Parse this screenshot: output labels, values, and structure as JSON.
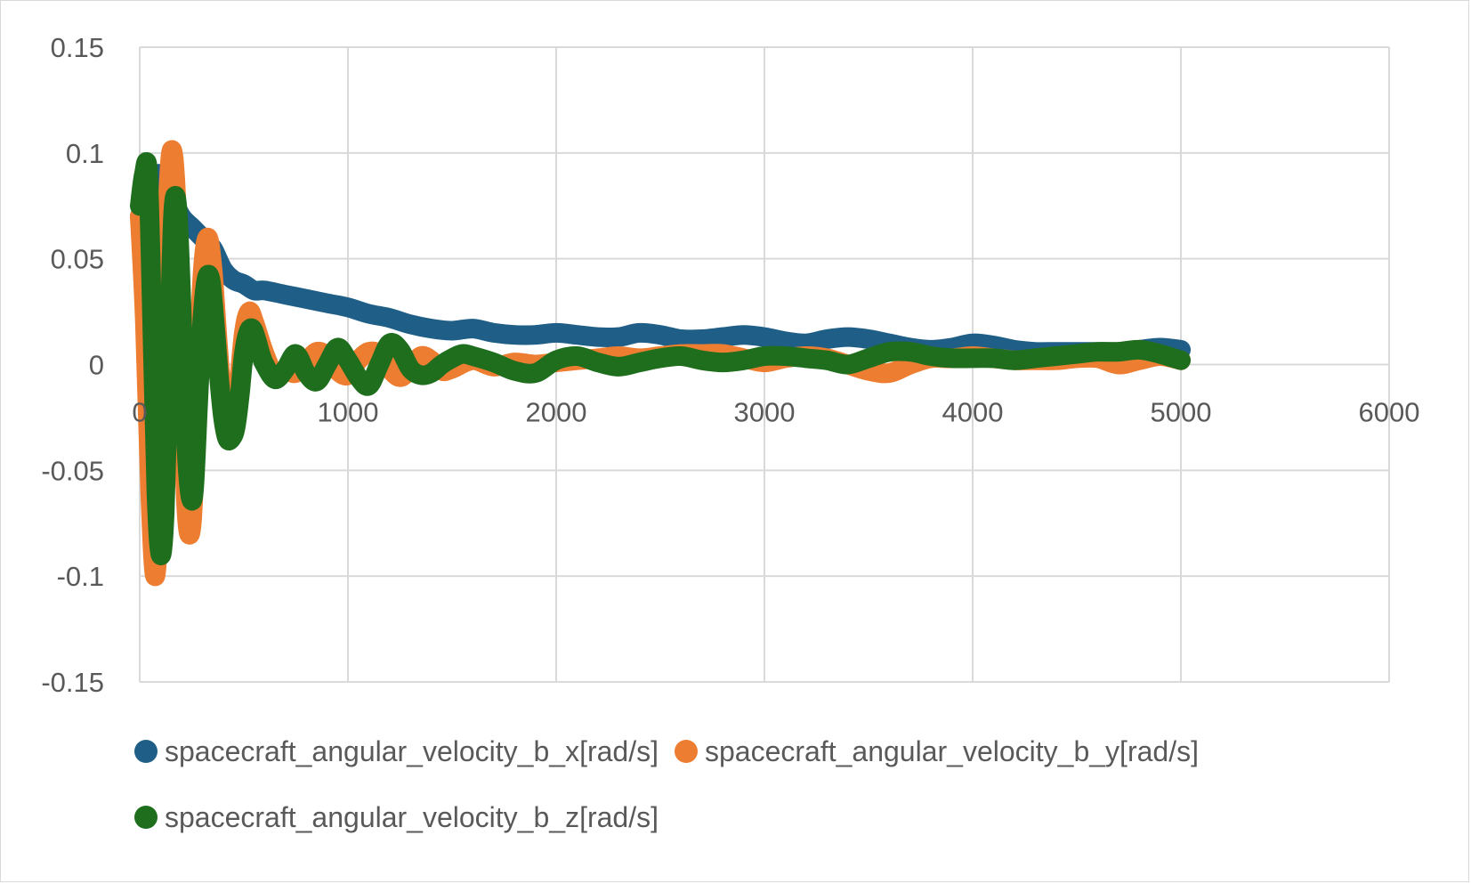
{
  "chart_data": {
    "type": "line",
    "title": "",
    "xlabel": "",
    "ylabel": "",
    "xlim": [
      0,
      6000
    ],
    "ylim": [
      -0.15,
      0.15
    ],
    "x_ticks": [
      0,
      1000,
      2000,
      3000,
      4000,
      5000,
      6000
    ],
    "y_ticks": [
      0.15,
      0.1,
      0.05,
      0,
      -0.05,
      -0.1,
      -0.15
    ],
    "x_tick_labels": [
      "0",
      "1000",
      "2000",
      "3000",
      "4000",
      "5000",
      "6000"
    ],
    "y_tick_labels": [
      "0.15",
      "0.1",
      "0.05",
      "0",
      "-0.05",
      "-0.1",
      "-0.15"
    ],
    "grid": true,
    "legend_position": "bottom",
    "series": [
      {
        "name": "spacecraft_angular_velocity_b_x[rad/s]",
        "color": "#1f5f87",
        "x": [
          0,
          50,
          100,
          150,
          200,
          250,
          300,
          350,
          400,
          450,
          500,
          550,
          600,
          700,
          800,
          900,
          1000,
          1100,
          1200,
          1300,
          1400,
          1500,
          1600,
          1700,
          1800,
          1900,
          2000,
          2100,
          2200,
          2300,
          2400,
          2500,
          2600,
          2700,
          2800,
          2900,
          3000,
          3100,
          3200,
          3300,
          3400,
          3500,
          3600,
          3700,
          3800,
          3900,
          4000,
          4100,
          4200,
          4300,
          4400,
          4500,
          4600,
          4700,
          4800,
          4900,
          5000
        ],
        "y": [
          0.07,
          0.085,
          0.09,
          0.08,
          0.07,
          0.065,
          0.06,
          0.055,
          0.045,
          0.04,
          0.038,
          0.035,
          0.035,
          0.033,
          0.031,
          0.029,
          0.027,
          0.024,
          0.022,
          0.019,
          0.017,
          0.016,
          0.017,
          0.015,
          0.014,
          0.014,
          0.015,
          0.014,
          0.013,
          0.013,
          0.015,
          0.014,
          0.012,
          0.012,
          0.013,
          0.014,
          0.013,
          0.011,
          0.01,
          0.012,
          0.013,
          0.012,
          0.01,
          0.008,
          0.007,
          0.008,
          0.01,
          0.009,
          0.007,
          0.006,
          0.006,
          0.006,
          0.006,
          0.006,
          0.007,
          0.008,
          0.007
        ]
      },
      {
        "name": "spacecraft_angular_velocity_b_y[rad/s]",
        "color": "#ed7d31",
        "x": [
          0,
          25,
          50,
          75,
          100,
          125,
          150,
          175,
          200,
          225,
          250,
          275,
          300,
          325,
          350,
          375,
          400,
          425,
          450,
          475,
          500,
          525,
          550,
          600,
          650,
          700,
          750,
          800,
          850,
          900,
          950,
          1000,
          1050,
          1100,
          1150,
          1200,
          1250,
          1300,
          1350,
          1400,
          1450,
          1500,
          1600,
          1700,
          1800,
          1900,
          2000,
          2100,
          2200,
          2300,
          2400,
          2500,
          2600,
          2700,
          2800,
          2900,
          3000,
          3100,
          3200,
          3300,
          3400,
          3500,
          3600,
          3700,
          3800,
          3900,
          4000,
          4100,
          4200,
          4300,
          4400,
          4500,
          4600,
          4700,
          4800,
          4900,
          5000
        ],
        "y": [
          0.07,
          0.02,
          -0.06,
          -0.1,
          -0.05,
          0.05,
          0.1,
          0.08,
          0.0,
          -0.07,
          -0.075,
          -0.02,
          0.04,
          0.06,
          0.045,
          0.01,
          -0.02,
          -0.035,
          -0.03,
          -0.01,
          0.015,
          0.025,
          0.02,
          0.005,
          -0.005,
          -0.003,
          -0.004,
          0.001,
          0.006,
          0.004,
          -0.003,
          -0.005,
          0.002,
          0.006,
          0.005,
          -0.002,
          -0.006,
          -0.002,
          0.004,
          0.002,
          -0.003,
          -0.002,
          0.002,
          -0.001,
          0.001,
          0.0,
          0.001,
          0.002,
          0.003,
          0.004,
          0.003,
          0.004,
          0.005,
          0.005,
          0.005,
          0.003,
          0.001,
          0.003,
          0.004,
          0.003,
          0.0,
          -0.003,
          -0.004,
          0.0,
          0.003,
          0.003,
          0.004,
          0.003,
          0.002,
          0.002,
          0.002,
          0.003,
          0.003,
          0.0,
          0.002,
          0.004,
          0.002
        ]
      },
      {
        "name": "spacecraft_angular_velocity_b_z[rad/s]",
        "color": "#1e6e1e",
        "x": [
          0,
          20,
          40,
          60,
          80,
          100,
          120,
          140,
          160,
          180,
          200,
          220,
          240,
          260,
          280,
          300,
          320,
          340,
          360,
          380,
          400,
          420,
          440,
          460,
          480,
          500,
          520,
          540,
          560,
          580,
          600,
          650,
          700,
          750,
          800,
          850,
          900,
          950,
          1000,
          1050,
          1100,
          1150,
          1200,
          1250,
          1300,
          1350,
          1400,
          1450,
          1500,
          1550,
          1600,
          1700,
          1800,
          1900,
          2000,
          2100,
          2200,
          2300,
          2400,
          2500,
          2600,
          2700,
          2800,
          2900,
          3000,
          3100,
          3200,
          3300,
          3400,
          3500,
          3600,
          3700,
          3800,
          3900,
          4000,
          4100,
          4200,
          4300,
          4400,
          4500,
          4600,
          4700,
          4800,
          4900,
          5000
        ],
        "y": [
          0.075,
          0.09,
          0.09,
          0.02,
          -0.06,
          -0.09,
          -0.07,
          0.0,
          0.07,
          0.075,
          0.03,
          -0.03,
          -0.06,
          -0.06,
          -0.02,
          0.02,
          0.04,
          0.04,
          0.02,
          -0.005,
          -0.025,
          -0.035,
          -0.035,
          -0.03,
          -0.015,
          0.005,
          0.015,
          0.017,
          0.012,
          0.005,
          0.0,
          -0.007,
          -0.002,
          0.005,
          -0.004,
          -0.008,
          0.0,
          0.008,
          0.002,
          -0.006,
          -0.01,
          0.0,
          0.01,
          0.007,
          -0.002,
          -0.005,
          -0.004,
          0.0,
          0.003,
          0.005,
          0.004,
          0.001,
          -0.003,
          -0.004,
          0.002,
          0.004,
          0.001,
          -0.001,
          0.001,
          0.003,
          0.004,
          0.002,
          0.001,
          0.002,
          0.004,
          0.004,
          0.003,
          0.002,
          0.0,
          0.003,
          0.006,
          0.006,
          0.004,
          0.003,
          0.003,
          0.003,
          0.002,
          0.003,
          0.004,
          0.005,
          0.006,
          0.006,
          0.007,
          0.005,
          0.002
        ]
      }
    ]
  }
}
